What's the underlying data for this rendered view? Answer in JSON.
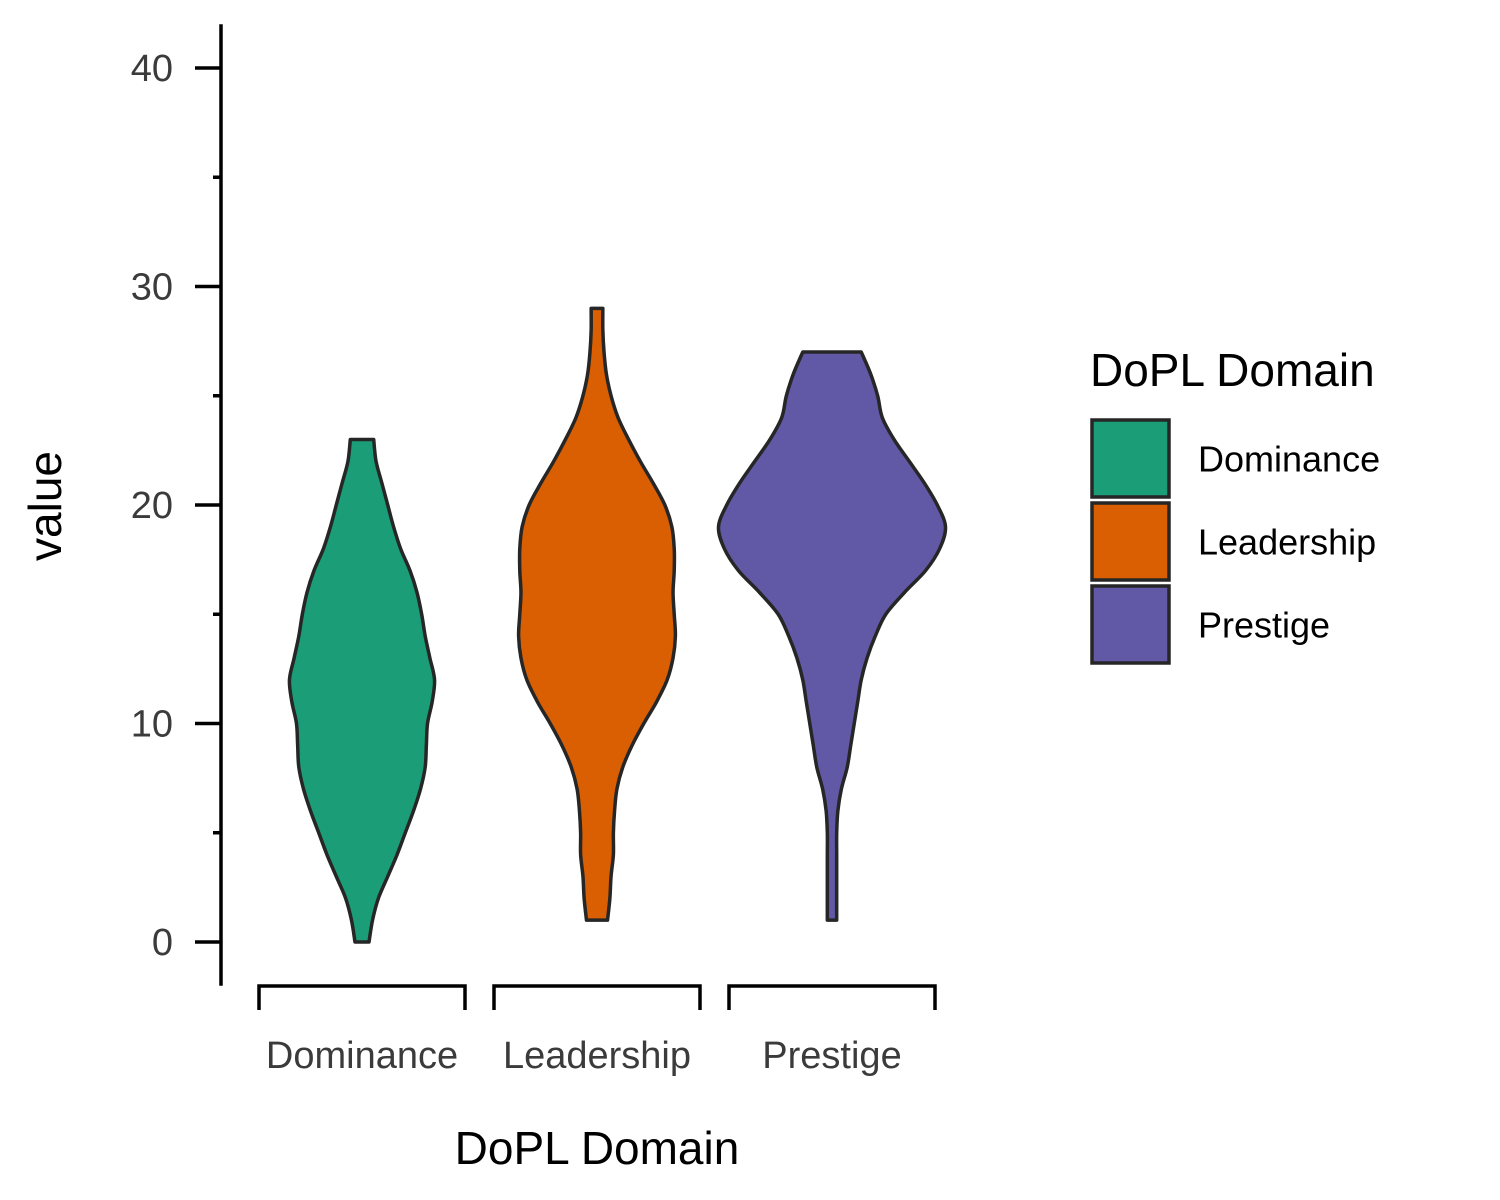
{
  "chart_data": {
    "type": "violin",
    "xlabel": "DoPL Domain",
    "ylabel": "value",
    "ylim": [
      -2,
      42
    ],
    "yticks": [
      0,
      10,
      20,
      30,
      40
    ],
    "yminor_ticks": [
      5,
      15,
      25,
      35
    ],
    "categories": [
      "Dominance",
      "Leadership",
      "Prestige"
    ],
    "legend": {
      "title": "DoPL Domain",
      "position": "right",
      "entries": [
        "Dominance",
        "Leadership",
        "Prestige"
      ]
    },
    "series": [
      {
        "name": "Dominance",
        "color": "#1b9e77",
        "min": 0,
        "max": 23,
        "profile": [
          [
            0,
            0.06
          ],
          [
            1,
            0.09
          ],
          [
            2,
            0.14
          ],
          [
            3,
            0.22
          ],
          [
            4,
            0.3
          ],
          [
            5,
            0.37
          ],
          [
            6,
            0.44
          ],
          [
            7,
            0.5
          ],
          [
            8,
            0.54
          ],
          [
            9,
            0.55
          ],
          [
            10,
            0.56
          ],
          [
            11,
            0.6
          ],
          [
            12,
            0.62
          ],
          [
            13,
            0.58
          ],
          [
            14,
            0.54
          ],
          [
            15,
            0.51
          ],
          [
            16,
            0.47
          ],
          [
            17,
            0.41
          ],
          [
            18,
            0.33
          ],
          [
            19,
            0.27
          ],
          [
            20,
            0.22
          ],
          [
            21,
            0.17
          ],
          [
            22,
            0.12
          ],
          [
            23,
            0.1
          ]
        ]
      },
      {
        "name": "Leadership",
        "color": "#d95f02",
        "min": 1,
        "max": 29,
        "profile": [
          [
            1,
            0.09
          ],
          [
            2,
            0.11
          ],
          [
            3,
            0.12
          ],
          [
            4,
            0.14
          ],
          [
            5,
            0.14
          ],
          [
            6,
            0.15
          ],
          [
            7,
            0.17
          ],
          [
            8,
            0.22
          ],
          [
            9,
            0.3
          ],
          [
            10,
            0.4
          ],
          [
            11,
            0.51
          ],
          [
            12,
            0.6
          ],
          [
            13,
            0.65
          ],
          [
            14,
            0.67
          ],
          [
            15,
            0.66
          ],
          [
            16,
            0.65
          ],
          [
            17,
            0.66
          ],
          [
            18,
            0.66
          ],
          [
            19,
            0.64
          ],
          [
            20,
            0.58
          ],
          [
            21,
            0.48
          ],
          [
            22,
            0.37
          ],
          [
            23,
            0.27
          ],
          [
            24,
            0.18
          ],
          [
            25,
            0.12
          ],
          [
            26,
            0.08
          ],
          [
            27,
            0.06
          ],
          [
            28,
            0.05
          ],
          [
            29,
            0.05
          ]
        ]
      },
      {
        "name": "Prestige",
        "color": "#6159a6",
        "min": 1,
        "max": 27,
        "profile": [
          [
            1,
            0.04
          ],
          [
            2,
            0.04
          ],
          [
            3,
            0.04
          ],
          [
            4,
            0.04
          ],
          [
            5,
            0.04
          ],
          [
            6,
            0.05
          ],
          [
            7,
            0.08
          ],
          [
            8,
            0.13
          ],
          [
            9,
            0.16
          ],
          [
            10,
            0.19
          ],
          [
            11,
            0.22
          ],
          [
            12,
            0.25
          ],
          [
            13,
            0.3
          ],
          [
            14,
            0.37
          ],
          [
            15,
            0.46
          ],
          [
            16,
            0.62
          ],
          [
            17,
            0.8
          ],
          [
            18,
            0.92
          ],
          [
            19,
            0.97
          ],
          [
            20,
            0.9
          ],
          [
            21,
            0.79
          ],
          [
            22,
            0.66
          ],
          [
            23,
            0.53
          ],
          [
            24,
            0.43
          ],
          [
            25,
            0.39
          ],
          [
            26,
            0.33
          ],
          [
            27,
            0.25
          ]
        ]
      }
    ]
  }
}
